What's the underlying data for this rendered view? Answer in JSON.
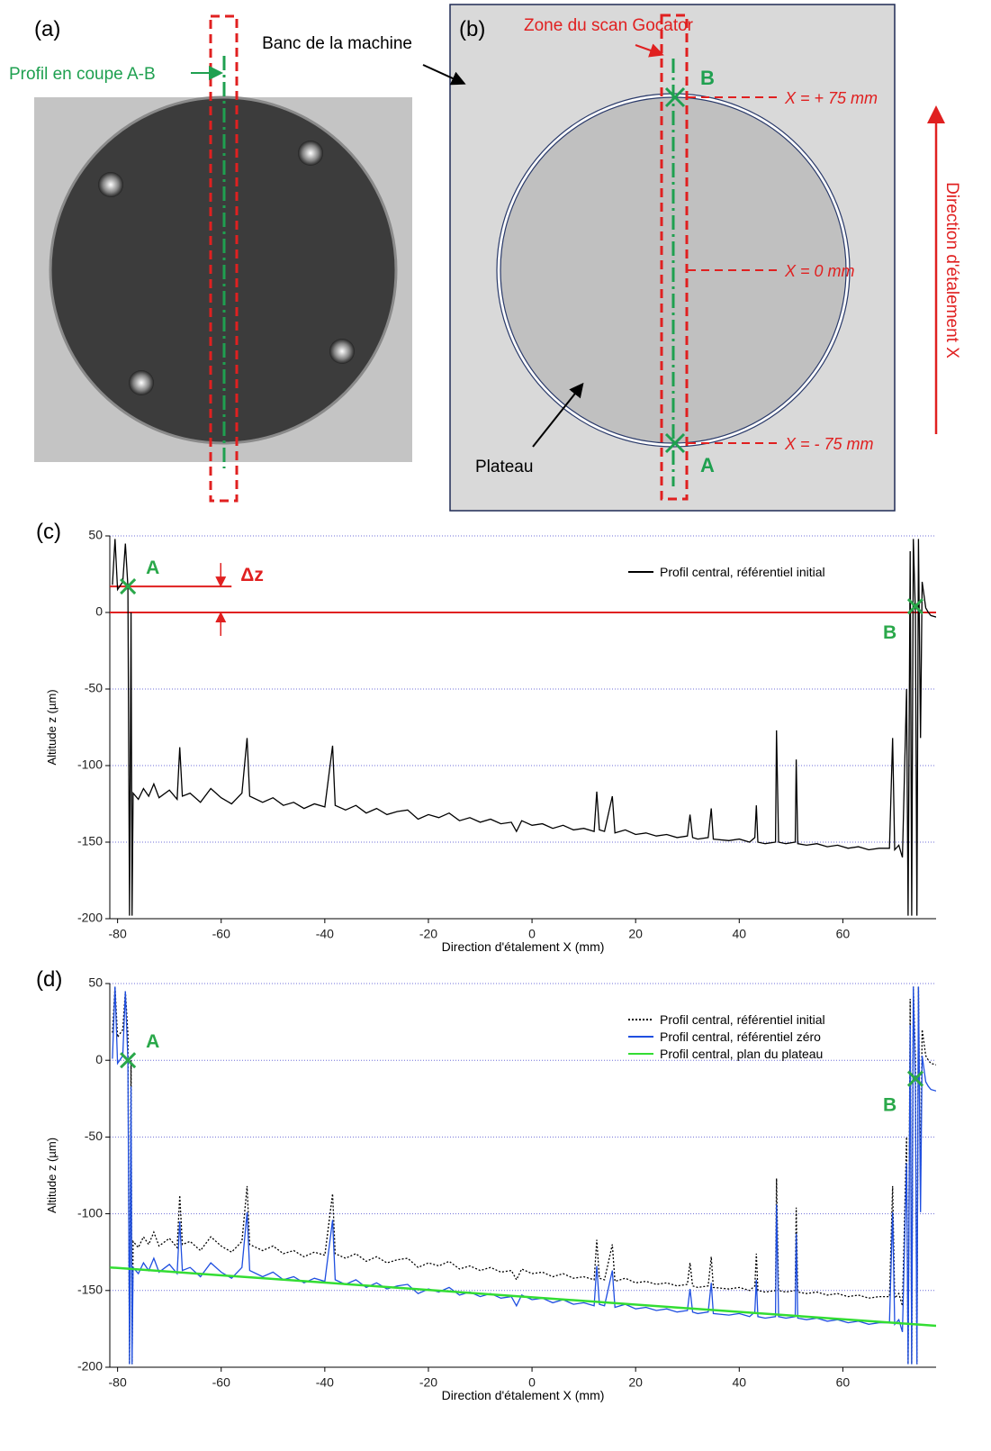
{
  "panels": {
    "a": {
      "label": "(a)",
      "profile": "Profil en coupe A-B"
    },
    "b": {
      "label": "(b)",
      "bench": "Banc de la machine",
      "scan_zone": "Zone du scan Gocator",
      "point_b": "B",
      "point_a": "A",
      "x_plus": "X = + 75 mm",
      "x_zero": "X = 0 mm",
      "x_minus": "X = - 75 mm",
      "plate": "Plateau",
      "direction": "Direction d'étalement X"
    }
  },
  "chart_data": [
    {
      "type": "line",
      "panel_label": "(c)",
      "xlabel": "Direction d'étalement X (mm)",
      "ylabel": "Altitude z (µm)",
      "xlim": [
        -81.5,
        78
      ],
      "ylim": [
        -200,
        50
      ],
      "xticks": [
        -80,
        -60,
        -40,
        -20,
        0,
        20,
        40,
        60
      ],
      "yticks": [
        -200,
        -150,
        -100,
        -50,
        0,
        50
      ],
      "grid": true,
      "grid_color": "#6f6fd8",
      "legend": "upper right",
      "x": [
        -81,
        -80.5,
        -80,
        -79,
        -78.5,
        -78,
        -77.7,
        -77.4,
        -77.2,
        -77,
        -76,
        -75,
        -74,
        -73,
        -72,
        -70,
        -68.5,
        -68,
        -67.5,
        -66,
        -64,
        -62,
        -60,
        -58,
        -56,
        -55,
        -54.5,
        -52,
        -50,
        -48,
        -46,
        -44,
        -42,
        -40,
        -38.5,
        -38,
        -36,
        -34,
        -32,
        -30,
        -28,
        -26,
        -24,
        -22,
        -20,
        -18,
        -16,
        -14,
        -12,
        -10,
        -8,
        -6,
        -4,
        -3,
        -2,
        0,
        2,
        4,
        6,
        8,
        10,
        12,
        12.5,
        13,
        14,
        15.5,
        16,
        18,
        20,
        22,
        24,
        26,
        28,
        30,
        30.5,
        31,
        32,
        34,
        34.6,
        35,
        38,
        40,
        42,
        43,
        43.3,
        43.6,
        45,
        47,
        47.2,
        47.6,
        49,
        50.8,
        51,
        51.3,
        53,
        55,
        57,
        59,
        61,
        63,
        65,
        67,
        69,
        69.6,
        70,
        70.8,
        71.5,
        72.3,
        72.6,
        73,
        73.3,
        73.6,
        74,
        74.3,
        74.6,
        75,
        75.3,
        76,
        76.5,
        77,
        78
      ],
      "series": [
        {
          "name": "Profil central, référentiel initial",
          "color": "#000000",
          "style": "solid",
          "values": [
            18,
            48,
            15,
            20,
            45,
            17,
            -198,
            0,
            -198,
            -118,
            -122,
            -115,
            -120,
            -112,
            -121,
            -116,
            -122,
            -88,
            -120,
            -118,
            -124,
            -115,
            -121,
            -125,
            -118,
            -82,
            -120,
            -124,
            -121,
            -126,
            -124,
            -128,
            -125,
            -127,
            -87,
            -126,
            -129,
            -126,
            -131,
            -128,
            -132,
            -130,
            -129,
            -135,
            -132,
            -134,
            -131,
            -136,
            -134,
            -137,
            -135,
            -138,
            -137,
            -143,
            -136,
            -139,
            -138,
            -141,
            -139,
            -142,
            -141,
            -143,
            -117,
            -142,
            -143,
            -120,
            -144,
            -142,
            -145,
            -144,
            -146,
            -145,
            -147,
            -146,
            -132,
            -147,
            -148,
            -147,
            -128,
            -148,
            -149,
            -148,
            -150,
            -147,
            -126,
            -150,
            -151,
            -150,
            -77,
            -150,
            -151,
            -150,
            -96,
            -151,
            -152,
            -151,
            -153,
            -152,
            -154,
            -153,
            -155,
            -154,
            -154,
            -82,
            -155,
            -152,
            -160,
            -50,
            -198,
            40,
            -198,
            48,
            0,
            -198,
            48,
            -82,
            20,
            3,
            0,
            -2,
            -3
          ]
        }
      ],
      "markers": [
        {
          "label": "A",
          "x": -78,
          "y": 17
        },
        {
          "label": "B",
          "x": 74,
          "y": 4
        }
      ],
      "ref_lines": [
        {
          "y": 17,
          "x": [
            -81.5,
            -58
          ]
        },
        {
          "y": 0
        }
      ],
      "delta_label": "Δz"
    },
    {
      "type": "line",
      "panel_label": "(d)",
      "xlabel": "Direction d'étalement X (mm)",
      "ylabel": "Altitude z (µm)",
      "xlim": [
        -81.5,
        78
      ],
      "ylim": [
        -200,
        50
      ],
      "xticks": [
        -80,
        -60,
        -40,
        -20,
        0,
        20,
        40,
        60
      ],
      "yticks": [
        -200,
        -150,
        -100,
        -50,
        0,
        50
      ],
      "grid": true,
      "grid_color": "#6f6fd8",
      "legend": "upper right",
      "x": [
        -81,
        -80.5,
        -80,
        -79,
        -78.5,
        -78,
        -77.7,
        -77.4,
        -77.2,
        -77,
        -76,
        -75,
        -74,
        -73,
        -72,
        -70,
        -68.5,
        -68,
        -67.5,
        -66,
        -64,
        -62,
        -60,
        -58,
        -56,
        -55,
        -54.5,
        -52,
        -50,
        -48,
        -46,
        -44,
        -42,
        -40,
        -38.5,
        -38,
        -36,
        -34,
        -32,
        -30,
        -28,
        -26,
        -24,
        -22,
        -20,
        -18,
        -16,
        -14,
        -12,
        -10,
        -8,
        -6,
        -4,
        -3,
        -2,
        0,
        2,
        4,
        6,
        8,
        10,
        12,
        12.5,
        13,
        14,
        15.5,
        16,
        18,
        20,
        22,
        24,
        26,
        28,
        30,
        30.5,
        31,
        32,
        34,
        34.6,
        35,
        38,
        40,
        42,
        43,
        43.3,
        43.6,
        45,
        47,
        47.2,
        47.6,
        49,
        50.8,
        51,
        51.3,
        53,
        55,
        57,
        59,
        61,
        63,
        65,
        67,
        69,
        69.6,
        70,
        70.8,
        71.5,
        72.3,
        72.6,
        73,
        73.3,
        73.6,
        74,
        74.3,
        74.6,
        75,
        75.3,
        76,
        76.5,
        77,
        78
      ],
      "series": [
        {
          "name": "Profil central, référentiel initial",
          "color": "#000000",
          "style": "dotted",
          "values": [
            18,
            48,
            15,
            20,
            45,
            17,
            -198,
            0,
            -198,
            -118,
            -122,
            -115,
            -120,
            -112,
            -121,
            -116,
            -122,
            -88,
            -120,
            -118,
            -124,
            -115,
            -121,
            -125,
            -118,
            -82,
            -120,
            -124,
            -121,
            -126,
            -124,
            -128,
            -125,
            -127,
            -87,
            -126,
            -129,
            -126,
            -131,
            -128,
            -132,
            -130,
            -129,
            -135,
            -132,
            -134,
            -131,
            -136,
            -134,
            -137,
            -135,
            -138,
            -137,
            -143,
            -136,
            -139,
            -138,
            -141,
            -139,
            -142,
            -141,
            -143,
            -117,
            -142,
            -143,
            -120,
            -144,
            -142,
            -145,
            -144,
            -146,
            -145,
            -147,
            -146,
            -132,
            -147,
            -148,
            -147,
            -128,
            -148,
            -149,
            -148,
            -150,
            -147,
            -126,
            -150,
            -151,
            -150,
            -77,
            -150,
            -151,
            -150,
            -96,
            -151,
            -152,
            -151,
            -153,
            -152,
            -154,
            -153,
            -155,
            -154,
            -154,
            -82,
            -155,
            -152,
            -160,
            -50,
            -198,
            40,
            -198,
            48,
            0,
            -198,
            48,
            -82,
            20,
            3,
            0,
            -2,
            -3
          ]
        },
        {
          "name": "Profil central, référentiel zéro",
          "color": "#1f4fe0",
          "style": "solid",
          "values": [
            1,
            48,
            -2,
            3,
            45,
            0,
            -198,
            -17,
            -198,
            -135,
            -139,
            -132,
            -137,
            -129,
            -138,
            -133,
            -139,
            -105,
            -137,
            -135,
            -141,
            -132,
            -138,
            -142,
            -135,
            -99,
            -137,
            -141,
            -138,
            -143,
            -141,
            -145,
            -142,
            -144,
            -104,
            -143,
            -146,
            -143,
            -148,
            -145,
            -149,
            -147,
            -146,
            -152,
            -149,
            -151,
            -148,
            -153,
            -151,
            -154,
            -152,
            -155,
            -154,
            -160,
            -153,
            -156,
            -155,
            -158,
            -156,
            -159,
            -158,
            -160,
            -134,
            -159,
            -160,
            -137,
            -161,
            -159,
            -162,
            -161,
            -163,
            -162,
            -164,
            -163,
            -149,
            -164,
            -165,
            -164,
            -145,
            -165,
            -166,
            -165,
            -167,
            -164,
            -143,
            -167,
            -168,
            -167,
            -94,
            -167,
            -168,
            -167,
            -113,
            -168,
            -169,
            -168,
            -170,
            -169,
            -171,
            -170,
            -172,
            -171,
            -171,
            -99,
            -172,
            -169,
            -177,
            -67,
            -198,
            23,
            -198,
            48,
            -17,
            -198,
            48,
            -99,
            3,
            -14,
            -17,
            -19,
            -20
          ]
        },
        {
          "name": "Profil central, plan du plateau",
          "color": "#33dd33",
          "style": "solid",
          "x": [
            -81.5,
            78
          ],
          "values": [
            -135,
            -173
          ]
        }
      ],
      "markers": [
        {
          "label": "A",
          "x": -78,
          "y": 0
        },
        {
          "label": "B",
          "x": 74,
          "y": -12
        }
      ]
    }
  ]
}
